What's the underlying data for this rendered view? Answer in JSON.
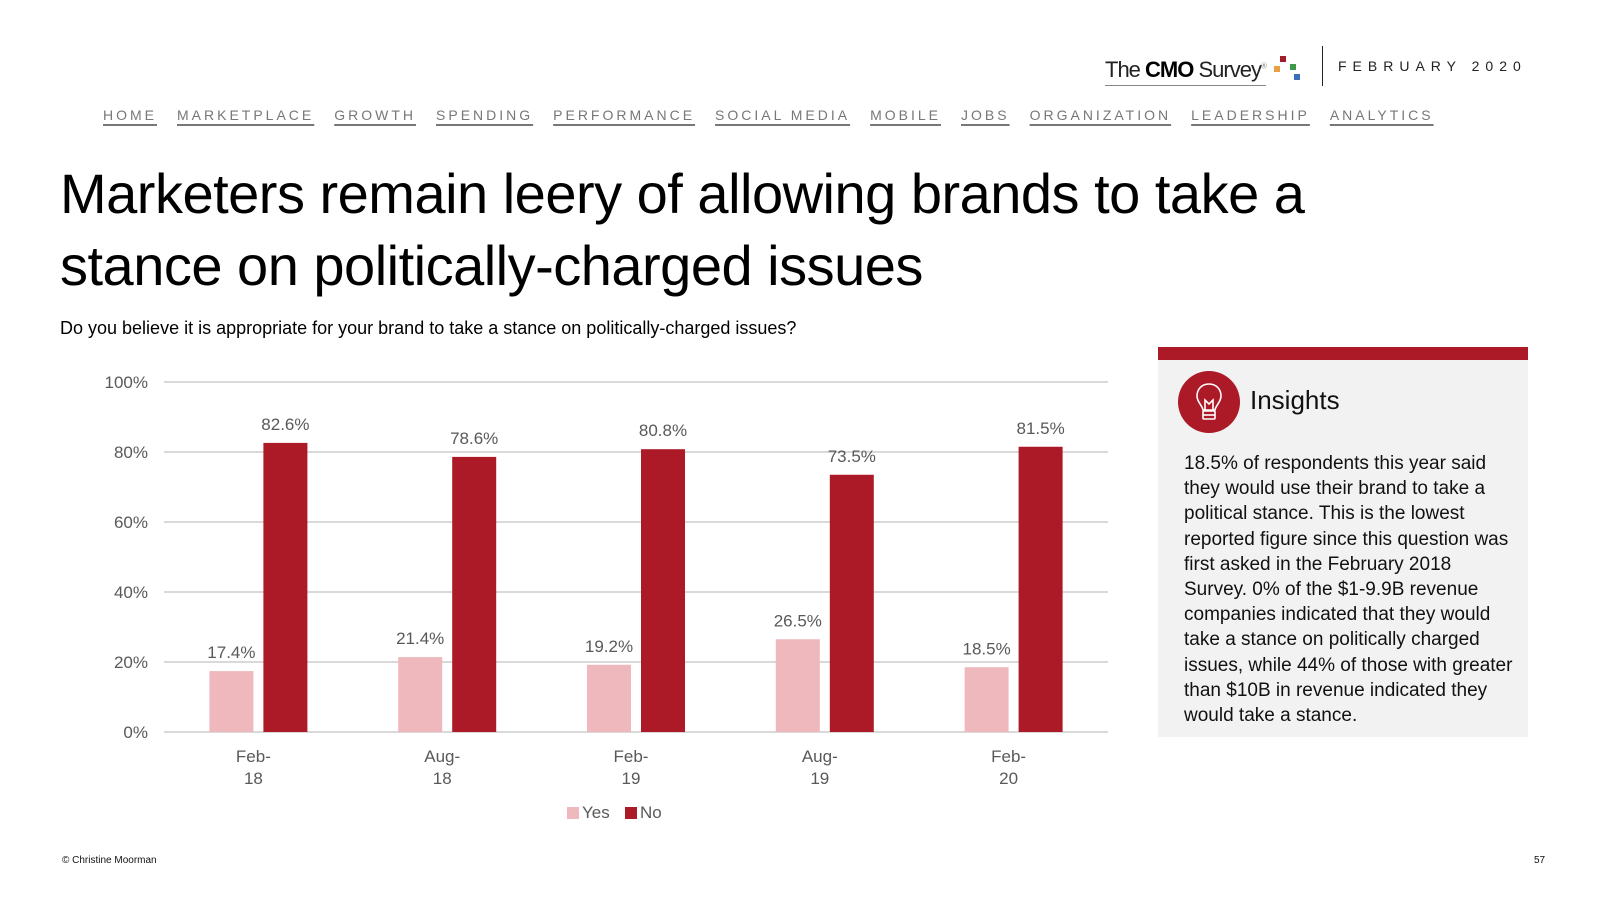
{
  "header": {
    "logo": {
      "prefix": "The ",
      "bold": "CMO",
      "suffix": " Survey",
      "registered": "®",
      "dot_colors": [
        "#a31c2a",
        "#e8a042",
        "#3e9a4a",
        "#3a6fb8",
        "#9aa7b0"
      ]
    },
    "date": "FEBRUARY 2020"
  },
  "nav": {
    "items": [
      {
        "label": "HOME"
      },
      {
        "label": "MARKETPLACE"
      },
      {
        "label": "GROWTH"
      },
      {
        "label": "SPENDING"
      },
      {
        "label": "PERFORMANCE"
      },
      {
        "label": "SOCIAL MEDIA"
      },
      {
        "label": "MOBILE"
      },
      {
        "label": "JOBS"
      },
      {
        "label": "ORGANIZATION"
      },
      {
        "label": "LEADERSHIP"
      },
      {
        "label": "ANALYTICS"
      }
    ]
  },
  "page": {
    "title": "Marketers remain leery of allowing brands to take a stance on politically-charged issues",
    "question": "Do you believe it is appropriate for your brand to take a stance on politically-charged issues?"
  },
  "chart_data": {
    "type": "bar",
    "title": "",
    "xlabel": "",
    "ylabel": "",
    "categories": [
      "Feb-18",
      "Aug-18",
      "Feb-19",
      "Aug-19",
      "Feb-20"
    ],
    "category_lines": [
      [
        "Feb-",
        "18"
      ],
      [
        "Aug-",
        "18"
      ],
      [
        "Feb-",
        "19"
      ],
      [
        "Aug-",
        "19"
      ],
      [
        "Feb-",
        "20"
      ]
    ],
    "series": [
      {
        "name": "Yes",
        "color": "#efb8bc",
        "values": [
          17.4,
          21.4,
          19.2,
          26.5,
          18.5
        ]
      },
      {
        "name": "No",
        "color": "#ab1a26",
        "values": [
          82.6,
          78.6,
          80.8,
          73.5,
          81.5
        ]
      }
    ],
    "ylim": [
      0,
      100
    ],
    "yticks": [
      0,
      20,
      40,
      60,
      80,
      100
    ],
    "ytick_labels": [
      "0%",
      "20%",
      "40%",
      "60%",
      "80%",
      "100%"
    ],
    "value_suffix": "%",
    "grid": true,
    "legend": "bottom"
  },
  "insights": {
    "title": "Insights",
    "icon": "lightbulb-icon",
    "accent": "#ab1a26",
    "body": "18.5% of respondents this year said they would use their brand to take a political stance. This is the lowest reported figure since this question was first asked in the February 2018 Survey. 0% of the $1-9.9B revenue companies indicated that they would take a stance on politically charged issues, while 44% of those with greater than $10B in revenue indicated they would take a stance."
  },
  "footer": {
    "copyright": "© Christine Moorman",
    "page_number": "57"
  }
}
